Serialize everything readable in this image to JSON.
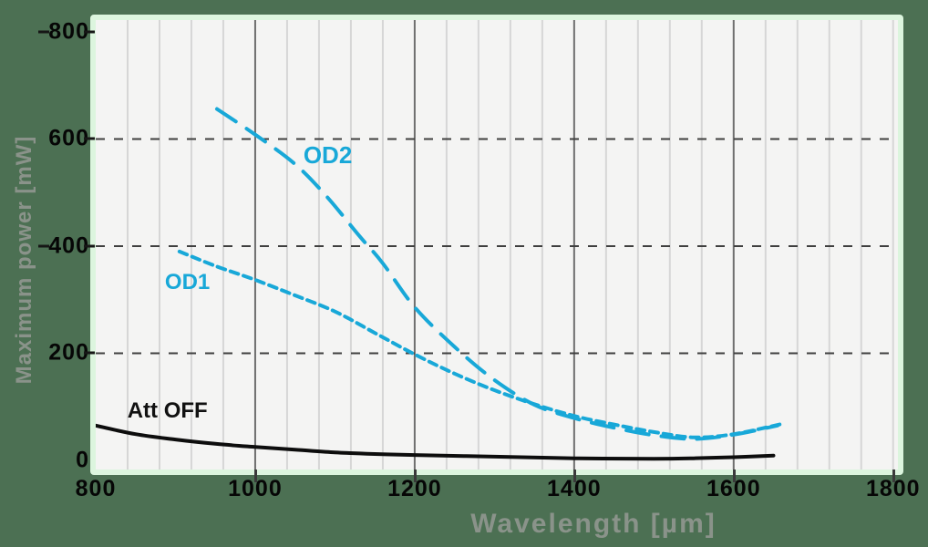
{
  "figure": {
    "background": "#4c7053"
  },
  "chart_data": {
    "type": "line",
    "title": "",
    "xlabel": "Wavelength [µm]",
    "ylabel": "Maximum power [mW]",
    "xlim": [
      800,
      1806
    ],
    "ylim": [
      -17,
      822
    ],
    "x_major_ticks": [
      800,
      1000,
      1200,
      1400,
      1600,
      1800
    ],
    "x_minor_start": 840,
    "x_minor_step": 40,
    "x_dark_gridlines": [
      1000,
      1200,
      1400,
      1600
    ],
    "x_tick_extensions": [
      1000,
      1200,
      1400,
      1600,
      1800
    ],
    "y_ticks": [
      0,
      200,
      400,
      600,
      800
    ],
    "y_dashed_gridlines": [
      200,
      400,
      600
    ],
    "y_side_dash_right": [
      200,
      400,
      600,
      800
    ],
    "y_side_dash_left": [
      400,
      800
    ],
    "grid": true,
    "legend_position": "inline-annotations",
    "colors": {
      "accent_cyan": "#18a8d8",
      "line_black": "#0d0d0d",
      "grid_minor": "#d6d6d6",
      "grid_major": "#6e6e6e",
      "grid_dashed": "#3f3f3f",
      "tick_text": "#060606",
      "axis_label_text": "#8a938a",
      "plot_bg": "#f4f4f3",
      "plot_border": "#dcf5de",
      "figure_bg": "#4c7053"
    },
    "series": [
      {
        "name": "Att OFF",
        "color": "#0d0d0d",
        "dash": null,
        "width": 4,
        "points": [
          [
            800,
            65
          ],
          [
            850,
            49
          ],
          [
            900,
            39
          ],
          [
            950,
            31
          ],
          [
            1000,
            25
          ],
          [
            1050,
            20
          ],
          [
            1100,
            15
          ],
          [
            1150,
            12
          ],
          [
            1200,
            10
          ],
          [
            1300,
            7
          ],
          [
            1400,
            4
          ],
          [
            1500,
            3
          ],
          [
            1550,
            4
          ],
          [
            1600,
            6
          ],
          [
            1650,
            9
          ]
        ]
      },
      {
        "name": "OD1",
        "color": "#18a8d8",
        "dash": [
          9,
          6
        ],
        "width": 4,
        "points": [
          [
            905,
            390
          ],
          [
            950,
            363
          ],
          [
            1000,
            337
          ],
          [
            1050,
            308
          ],
          [
            1100,
            278
          ],
          [
            1150,
            238
          ],
          [
            1200,
            198
          ],
          [
            1250,
            162
          ],
          [
            1300,
            131
          ],
          [
            1350,
            105
          ],
          [
            1400,
            83
          ],
          [
            1450,
            67
          ],
          [
            1500,
            53
          ],
          [
            1550,
            43
          ],
          [
            1600,
            49
          ],
          [
            1660,
            68
          ]
        ]
      },
      {
        "name": "OD2",
        "color": "#18a8d8",
        "dash": [
          25,
          14
        ],
        "width": 4,
        "points": [
          [
            952,
            656
          ],
          [
            1000,
            608
          ],
          [
            1050,
            553
          ],
          [
            1090,
            492
          ],
          [
            1130,
            420
          ],
          [
            1160,
            368
          ],
          [
            1200,
            286
          ],
          [
            1250,
            212
          ],
          [
            1300,
            150
          ],
          [
            1350,
            104
          ],
          [
            1400,
            79
          ],
          [
            1450,
            61
          ],
          [
            1500,
            47
          ],
          [
            1550,
            40
          ],
          [
            1600,
            48
          ],
          [
            1655,
            65
          ]
        ]
      }
    ],
    "annotations": [
      {
        "id": "od2",
        "text": "OD2",
        "x": 1091,
        "y": 570,
        "color": "#18a8d8",
        "size": 26,
        "weight": 800
      },
      {
        "id": "od1",
        "text": "OD1",
        "x": 915,
        "y": 332,
        "color": "#18a8d8",
        "size": 24,
        "weight": 800
      },
      {
        "id": "att-off",
        "text": "Att OFF",
        "x": 890,
        "y": 92,
        "color": "#111111",
        "size": 24,
        "weight": 700
      }
    ]
  }
}
